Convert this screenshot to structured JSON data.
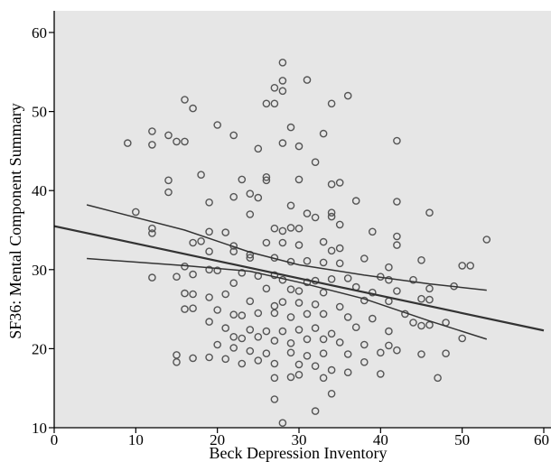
{
  "chart_data": {
    "type": "scatter",
    "xlabel": "Beck Depression Inventory",
    "ylabel": "SF36: Mental Component Summary",
    "xlim": [
      0,
      60
    ],
    "ylim": [
      10,
      62
    ],
    "xticks": [
      0,
      10,
      20,
      30,
      40,
      50,
      60
    ],
    "yticks": [
      10,
      20,
      30,
      40,
      50,
      60
    ],
    "x_tick_labels": [
      "0",
      "10",
      "20",
      "30",
      "40",
      "50",
      "60"
    ],
    "y_tick_labels": [
      "10",
      "20",
      "30",
      "40",
      "50",
      "60"
    ],
    "grid": false,
    "background_color": "#e6e6e6",
    "point_color": "#555555",
    "line_color": "#333333",
    "regression_line": {
      "points": [
        [
          0,
          35.5
        ],
        [
          60,
          22.3
        ]
      ]
    },
    "confidence_bands": {
      "upper": [
        [
          4,
          38.2
        ],
        [
          16,
          35.0
        ],
        [
          24,
          32.2
        ],
        [
          30,
          30.6
        ],
        [
          38,
          29.3
        ],
        [
          46,
          28.2
        ],
        [
          53,
          27.4
        ]
      ],
      "lower": [
        [
          4,
          31.4
        ],
        [
          16,
          30.5
        ],
        [
          24,
          29.8
        ],
        [
          30,
          28.4
        ],
        [
          38,
          26.3
        ],
        [
          46,
          23.5
        ],
        [
          53,
          21.2
        ]
      ]
    },
    "series": [
      {
        "points": [
          [
            28,
            56.2
          ],
          [
            27,
            53
          ],
          [
            28,
            53.9
          ],
          [
            31,
            54
          ],
          [
            28,
            52.6
          ],
          [
            16,
            51.5
          ],
          [
            26,
            51
          ],
          [
            27,
            51
          ],
          [
            36,
            52
          ],
          [
            17,
            50.4
          ],
          [
            34,
            51
          ],
          [
            20,
            48.3
          ],
          [
            12,
            47.5
          ],
          [
            29,
            48
          ],
          [
            15,
            46.2
          ],
          [
            9,
            46
          ],
          [
            12,
            45.8
          ],
          [
            14,
            47
          ],
          [
            16,
            46.2
          ],
          [
            22,
            47
          ],
          [
            33,
            47.2
          ],
          [
            42,
            46.3
          ],
          [
            28,
            46
          ],
          [
            30,
            45.6
          ],
          [
            25,
            45.3
          ],
          [
            32,
            43.6
          ],
          [
            18,
            42
          ],
          [
            26,
            41.7
          ],
          [
            26,
            41.3
          ],
          [
            14,
            41.3
          ],
          [
            30,
            41.4
          ],
          [
            34,
            40.8
          ],
          [
            35,
            41
          ],
          [
            14,
            39.8
          ],
          [
            22,
            39.2
          ],
          [
            24,
            39.6
          ],
          [
            25,
            39.1
          ],
          [
            23,
            41.4
          ],
          [
            37,
            38.7
          ],
          [
            42,
            38.6
          ],
          [
            10,
            37.3
          ],
          [
            19,
            38.5
          ],
          [
            29,
            38.1
          ],
          [
            31,
            37.1
          ],
          [
            32,
            36.6
          ],
          [
            34,
            37.2
          ],
          [
            46,
            37.2
          ],
          [
            24,
            37
          ],
          [
            34,
            36.7
          ],
          [
            27,
            35.2
          ],
          [
            12,
            35.2
          ],
          [
            12,
            34.6
          ],
          [
            19,
            34.8
          ],
          [
            21,
            34.7
          ],
          [
            28,
            34.9
          ],
          [
            29,
            35.3
          ],
          [
            30,
            35.2
          ],
          [
            35,
            35.7
          ],
          [
            39,
            34.8
          ],
          [
            42,
            34.2
          ],
          [
            17,
            33.4
          ],
          [
            18,
            33.6
          ],
          [
            22,
            33
          ],
          [
            26,
            33.4
          ],
          [
            28,
            33.4
          ],
          [
            30,
            33.1
          ],
          [
            33,
            33.5
          ],
          [
            34,
            32.4
          ],
          [
            35,
            32.7
          ],
          [
            42,
            33.1
          ],
          [
            53,
            33.8
          ],
          [
            19,
            32.3
          ],
          [
            22,
            32.3
          ],
          [
            24,
            31.9
          ],
          [
            24,
            31.5
          ],
          [
            27,
            31.5
          ],
          [
            29,
            31
          ],
          [
            31,
            31.1
          ],
          [
            33,
            30.9
          ],
          [
            35,
            30.8
          ],
          [
            38,
            31.4
          ],
          [
            41,
            30.3
          ],
          [
            50,
            30.5
          ],
          [
            51,
            30.5
          ],
          [
            45,
            31.2
          ],
          [
            16,
            30.4
          ],
          [
            19,
            30
          ],
          [
            20,
            29.9
          ],
          [
            23,
            29.6
          ],
          [
            25,
            29.2
          ],
          [
            27,
            29.3
          ],
          [
            28,
            28.7
          ],
          [
            31,
            28.4
          ],
          [
            32,
            28.6
          ],
          [
            34,
            28.8
          ],
          [
            36,
            28.9
          ],
          [
            40,
            29.1
          ],
          [
            41,
            28.7
          ],
          [
            44,
            28.7
          ],
          [
            49,
            27.9
          ],
          [
            12,
            29
          ],
          [
            15,
            29.1
          ],
          [
            17,
            29.4
          ],
          [
            22,
            28.3
          ],
          [
            26,
            27.6
          ],
          [
            29,
            27.5
          ],
          [
            30,
            27.3
          ],
          [
            33,
            27.1
          ],
          [
            37,
            27.8
          ],
          [
            39,
            27.1
          ],
          [
            42,
            27.3
          ],
          [
            46,
            27.6
          ],
          [
            16,
            27
          ],
          [
            17,
            26.9
          ],
          [
            19,
            26.5
          ],
          [
            21,
            26.9
          ],
          [
            24,
            26
          ],
          [
            27,
            25.4
          ],
          [
            28,
            25.9
          ],
          [
            30,
            25.8
          ],
          [
            32,
            25.6
          ],
          [
            35,
            25.3
          ],
          [
            38,
            26.1
          ],
          [
            41,
            26
          ],
          [
            45,
            26.3
          ],
          [
            46,
            26.2
          ],
          [
            16,
            25
          ],
          [
            17,
            25.1
          ],
          [
            20,
            24.9
          ],
          [
            22,
            24.3
          ],
          [
            23,
            24.2
          ],
          [
            25,
            24.5
          ],
          [
            27,
            24.5
          ],
          [
            29,
            24
          ],
          [
            31,
            24.4
          ],
          [
            33,
            24.4
          ],
          [
            36,
            24
          ],
          [
            39,
            23.8
          ],
          [
            43,
            24.4
          ],
          [
            44,
            23.3
          ],
          [
            46,
            23
          ],
          [
            48,
            23.3
          ],
          [
            19,
            23.4
          ],
          [
            21,
            22.6
          ],
          [
            24,
            22.4
          ],
          [
            26,
            22.2
          ],
          [
            28,
            22.2
          ],
          [
            30,
            22.4
          ],
          [
            32,
            22.6
          ],
          [
            34,
            21.9
          ],
          [
            37,
            22.7
          ],
          [
            41,
            22.2
          ],
          [
            45,
            22.9
          ],
          [
            50,
            21.3
          ],
          [
            22,
            21.5
          ],
          [
            23,
            21.3
          ],
          [
            25,
            21.5
          ],
          [
            27,
            21
          ],
          [
            29,
            20.7
          ],
          [
            31,
            21.2
          ],
          [
            33,
            21.2
          ],
          [
            35,
            20.8
          ],
          [
            38,
            20.5
          ],
          [
            41,
            20.4
          ],
          [
            42,
            19.8
          ],
          [
            20,
            20.5
          ],
          [
            22,
            20.1
          ],
          [
            24,
            19.7
          ],
          [
            26,
            19.4
          ],
          [
            29,
            19.5
          ],
          [
            31,
            19.1
          ],
          [
            33,
            19.4
          ],
          [
            36,
            19.3
          ],
          [
            40,
            19.5
          ],
          [
            45,
            19.3
          ],
          [
            48,
            19.4
          ],
          [
            15,
            19.2
          ],
          [
            15,
            18.3
          ],
          [
            17,
            18.8
          ],
          [
            19,
            18.9
          ],
          [
            21,
            18.7
          ],
          [
            23,
            18.1
          ],
          [
            25,
            18.5
          ],
          [
            27,
            18.1
          ],
          [
            30,
            18
          ],
          [
            32,
            17.8
          ],
          [
            34,
            17.3
          ],
          [
            36,
            17
          ],
          [
            38,
            18.3
          ],
          [
            40,
            16.8
          ],
          [
            47,
            16.3
          ],
          [
            27,
            16.3
          ],
          [
            29,
            16.4
          ],
          [
            30,
            16.7
          ],
          [
            33,
            16.3
          ],
          [
            34,
            14.3
          ],
          [
            27,
            13.6
          ],
          [
            32,
            12.1
          ],
          [
            28,
            10.6
          ]
        ]
      }
    ]
  }
}
